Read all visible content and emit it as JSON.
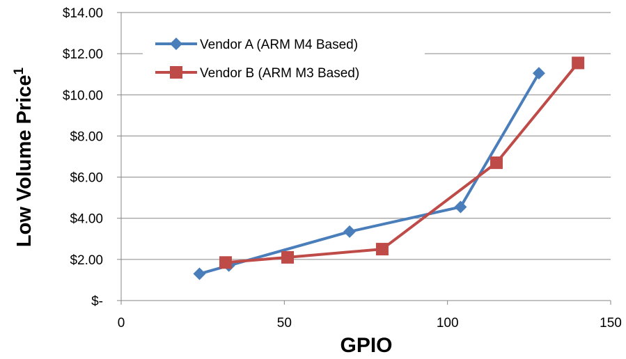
{
  "chart_data": {
    "type": "line",
    "xlabel": "GPIO",
    "ylabel": "Low Volume Price",
    "ylabel_superscript": "1",
    "xlim": [
      0,
      150
    ],
    "ylim": [
      0,
      14
    ],
    "x_ticks": [
      0,
      50,
      100,
      150
    ],
    "x_tick_labels": [
      "0",
      "50",
      "100",
      "150"
    ],
    "y_ticks": [
      0,
      2,
      4,
      6,
      8,
      10,
      12,
      14
    ],
    "y_tick_labels": [
      "$-",
      "$2.00",
      "$4.00",
      "$6.00",
      "$8.00",
      "$10.00",
      "$12.00",
      "$14.00"
    ],
    "grid": "horizontal",
    "legend_position": "top-left",
    "series": [
      {
        "name": "Vendor A (ARM M4 Based)",
        "color": "#4a7ebb",
        "marker": "diamond",
        "x": [
          24,
          33,
          70,
          104,
          128
        ],
        "y": [
          1.3,
          1.7,
          3.35,
          4.55,
          11.05
        ]
      },
      {
        "name": "Vendor B (ARM M3 Based)",
        "color": "#be4b48",
        "marker": "square",
        "x": [
          32,
          51,
          80,
          115,
          140
        ],
        "y": [
          1.85,
          2.1,
          2.5,
          6.7,
          11.55
        ]
      }
    ]
  }
}
